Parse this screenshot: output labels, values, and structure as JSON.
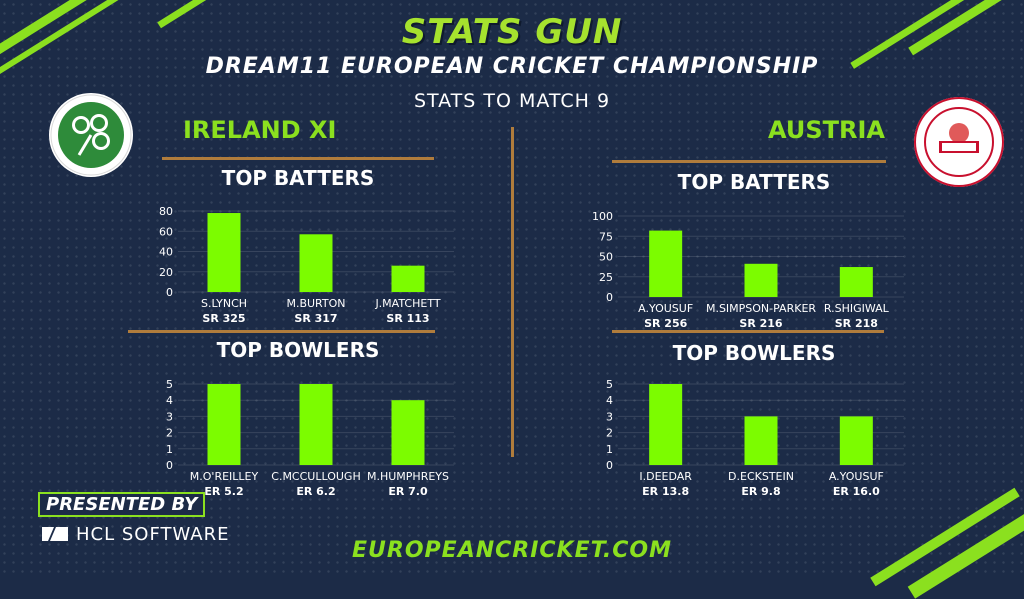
{
  "header": {
    "title": "STATS GUN",
    "subtitle": "DREAM11 EUROPEAN CRICKET CHAMPIONSHIP",
    "stats_to": "STATS TO MATCH 9"
  },
  "colors": {
    "bar": "#7cfc00",
    "accent": "#8be01f",
    "divider": "#b07c3c",
    "background": "#1c2b47"
  },
  "teams": {
    "left": {
      "name": "IRELAND XI",
      "logo_icon": "shamrock-icon"
    },
    "right": {
      "name": "AUSTRIA",
      "logo_icon": "austria-crest-icon"
    }
  },
  "sections": {
    "batters": "TOP BATTERS",
    "bowlers": "TOP BOWLERS"
  },
  "chart_data": [
    {
      "type": "bar",
      "team": "IRELAND XI",
      "title": "TOP BATTERS",
      "categories": [
        "S.LYNCH",
        "M.BURTON",
        "J.MATCHETT"
      ],
      "sublabels": [
        "SR 325",
        "SR 317",
        "SR 113"
      ],
      "values": [
        78,
        57,
        26
      ],
      "ylim": [
        0,
        80
      ],
      "yticks": [
        0,
        20,
        40,
        60,
        80
      ],
      "grid": true
    },
    {
      "type": "bar",
      "team": "IRELAND XI",
      "title": "TOP BOWLERS",
      "categories": [
        "M.O'REILLEY",
        "C.MCCULLOUGH",
        "M.HUMPHREYS"
      ],
      "sublabels": [
        "ER 5.2",
        "ER 6.2",
        "ER 7.0"
      ],
      "values": [
        5,
        5,
        4
      ],
      "ylim": [
        0,
        5
      ],
      "yticks": [
        0,
        1,
        2,
        3,
        4,
        5
      ],
      "grid": true
    },
    {
      "type": "bar",
      "team": "AUSTRIA",
      "title": "TOP BATTERS",
      "categories": [
        "A.YOUSUF",
        "M.SIMPSON-PARKER",
        "R.SHIGIWAL"
      ],
      "sublabels": [
        "SR 256",
        "SR 216",
        "SR 218"
      ],
      "values": [
        82,
        41,
        37
      ],
      "ylim": [
        0,
        100
      ],
      "yticks": [
        0,
        25,
        50,
        75,
        100
      ],
      "grid": true
    },
    {
      "type": "bar",
      "team": "AUSTRIA",
      "title": "TOP BOWLERS",
      "categories": [
        "I.DEEDAR",
        "D.ECKSTEIN",
        "A.YOUSUF"
      ],
      "sublabels": [
        "ER 13.8",
        "ER 9.8",
        "ER 16.0"
      ],
      "values": [
        5,
        3,
        3
      ],
      "ylim": [
        0,
        5
      ],
      "yticks": [
        0,
        1,
        2,
        3,
        4,
        5
      ],
      "grid": true
    }
  ],
  "sponsor": {
    "presented_by": "PRESENTED BY",
    "name": "HCL SOFTWARE",
    "logo_icon": "hcl-logo-icon"
  },
  "footer": {
    "url": "EUROPEANCRICKET.COM"
  }
}
